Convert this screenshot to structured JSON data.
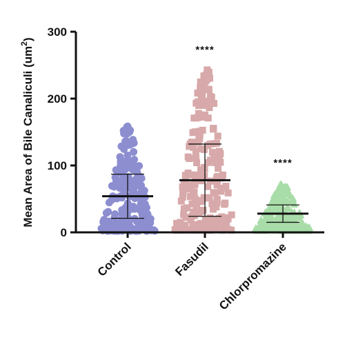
{
  "chart_data": {
    "type": "scatter",
    "subtype": "beeswarm with mean and SD error bars",
    "title": "",
    "xlabel": "",
    "ylabel_main": "Mean Area of Bile Canaliculi (um",
    "ylabel_sup": "2",
    "ylabel_tail": ")",
    "ylim": [
      0,
      300
    ],
    "yticks": [
      0,
      100,
      200,
      300
    ],
    "ytick_labels": [
      "0",
      "100",
      "200",
      "300"
    ],
    "grid": false,
    "legend": "none",
    "categories": [
      "Control",
      "Fasudil",
      "Chlorpromazine"
    ],
    "series": [
      {
        "category": "Control",
        "marker": "circle",
        "color": "#8c8ed0",
        "mean": 54,
        "sd": 33,
        "min": 2,
        "max": 160,
        "significance": ""
      },
      {
        "category": "Fasudil",
        "marker": "square",
        "color": "#d8a9aa",
        "mean": 78,
        "sd": 54,
        "min": 3,
        "max": 245,
        "significance": "****"
      },
      {
        "category": "Chlorpromazine",
        "marker": "triangle",
        "color": "#a8dca8",
        "mean": 28,
        "sd": 13,
        "min": 3,
        "max": 72,
        "significance": "****"
      }
    ]
  }
}
